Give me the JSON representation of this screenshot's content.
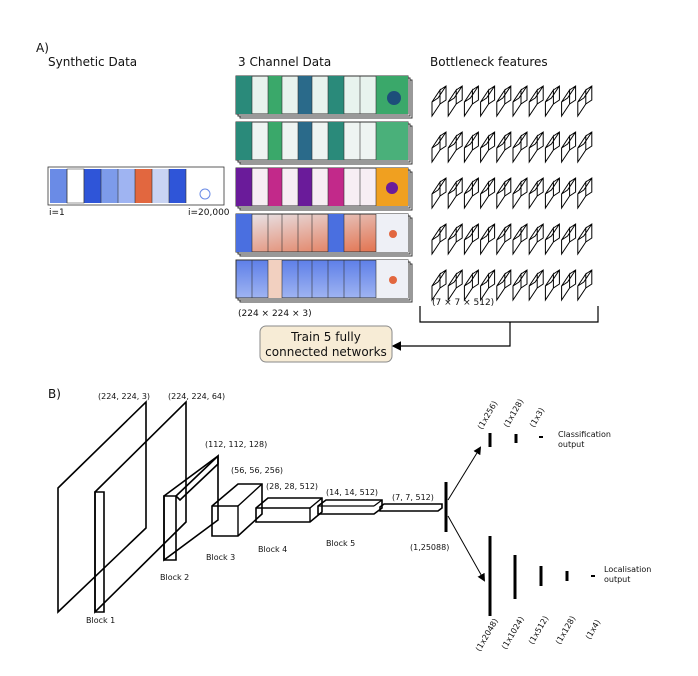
{
  "panel_a": {
    "label": "A)",
    "synthetic_title": "Synthetic Data",
    "three_channel_title": "3 Channel Data",
    "bottleneck_title": "Bottleneck features",
    "index_start": "i=1",
    "index_end": "i=20,000",
    "input_shape": "(224 × 224 × 3)",
    "feature_shape": "(7 × 7 × 512)",
    "train_line1": "Train 5 fully",
    "train_line2": "connected networks",
    "colors": {
      "train_box_fill": "#f7ecd6",
      "train_box_stroke": "#8a8a8a",
      "cool": "#4a6fe0",
      "warm": "#e2673f",
      "teal": "#2a8a7a",
      "green": "#3aa86a",
      "purple": "#6a1b9a",
      "magenta": "#c2298a",
      "orange": "#f0a020"
    }
  },
  "panel_b": {
    "label": "B)",
    "shapes": [
      "(224, 224, 3)",
      "(224, 224, 64)",
      "(112, 112, 128)",
      "(56, 56, 256)",
      "(28, 28, 512)",
      "(14, 14, 512)",
      "(7, 7, 512)"
    ],
    "blocks": [
      "Block 1",
      "Block 2",
      "Block 3",
      "Block 4",
      "Block 5"
    ],
    "flatten": "(1,25088)",
    "classification_dims": [
      "(1x256)",
      "(1x128)",
      "(1x3)"
    ],
    "classification_label_1": "Classification",
    "classification_label_2": "output",
    "localisation_dims": [
      "(1x2048)",
      "(1x1024)",
      "(1x512)",
      "(1x128)",
      "(1x4)"
    ],
    "localisation_label_1": "Localisation",
    "localisation_label_2": "output"
  }
}
